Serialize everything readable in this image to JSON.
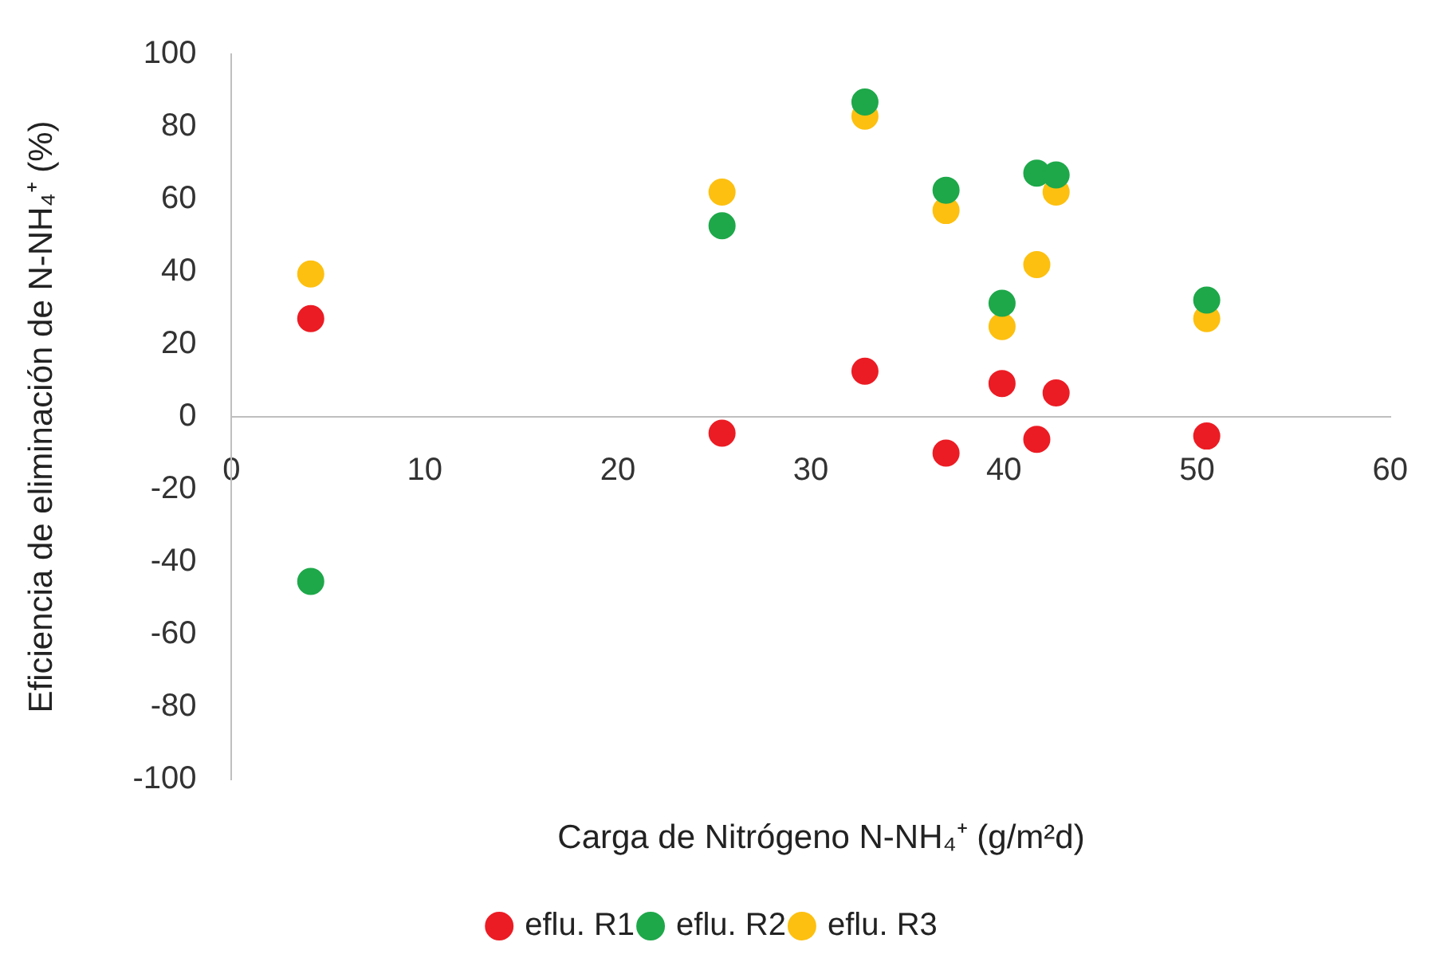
{
  "chart_data": {
    "type": "scatter",
    "xlabel": "Carga  de Nitrógeno N-NH₄⁺ (g/m²d)",
    "ylabel": "Eficiencia de eliminación de N-NH₄⁺ (%)",
    "xlim": [
      0,
      60
    ],
    "xticks": [
      0,
      10,
      20,
      30,
      40,
      50,
      60
    ],
    "ylim": [
      -100,
      100
    ],
    "yticks": [
      -100,
      -80,
      -60,
      -40,
      -20,
      0,
      20,
      40,
      60,
      80,
      100
    ],
    "grid": false,
    "legend": "bottom",
    "marker": "circle",
    "series": [
      {
        "name": "eflu. R1",
        "color": "#ec1c24",
        "x": [
          4.1,
          25.4,
          32.8,
          37.0,
          39.9,
          41.7,
          42.7,
          50.5
        ],
        "values": [
          27.1,
          -4.5,
          12.6,
          -10.0,
          9.2,
          -6.2,
          6.6,
          -5.3
        ]
      },
      {
        "name": "eflu. R2",
        "color": "#1ea84a",
        "x": [
          4.1,
          25.4,
          32.8,
          37.0,
          39.9,
          41.7,
          42.7,
          50.5
        ],
        "values": [
          -45.4,
          52.7,
          86.8,
          62.5,
          31.3,
          67.2,
          66.7,
          32.2
        ]
      },
      {
        "name": "eflu. R3",
        "color": "#fdc010",
        "x": [
          4.1,
          25.4,
          32.8,
          37.0,
          39.9,
          41.7,
          42.7,
          50.5
        ],
        "values": [
          39.4,
          62.0,
          82.9,
          56.9,
          24.9,
          42.0,
          62.0,
          27.1
        ]
      }
    ]
  }
}
